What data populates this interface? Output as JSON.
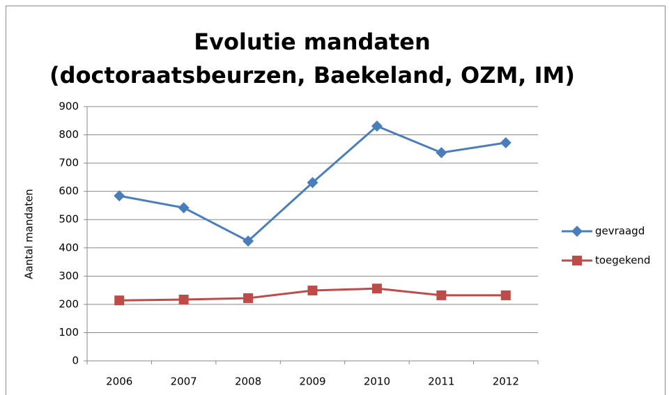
{
  "chart_data": {
    "type": "line",
    "title": [
      "Evolutie mandaten",
      "(doctoraatsbeurzen, Baekeland, OZM, IM)"
    ],
    "y_label": "Aantal mandaten",
    "categories": [
      "2006",
      "2007",
      "2008",
      "2009",
      "2010",
      "2011",
      "2012"
    ],
    "series": [
      {
        "name": "gevraagd",
        "color": "#4a7ebb",
        "marker": "diamond",
        "values": [
          584,
          542,
          424,
          631,
          831,
          737,
          772
        ]
      },
      {
        "name": "toegekend",
        "color": "#be4b48",
        "marker": "square",
        "values": [
          214,
          217,
          222,
          249,
          256,
          232,
          232
        ]
      }
    ],
    "ylim": [
      0,
      900
    ],
    "yticks": [
      0,
      100,
      200,
      300,
      400,
      500,
      600,
      700,
      800,
      900
    ],
    "grid": true,
    "legend": "right"
  }
}
